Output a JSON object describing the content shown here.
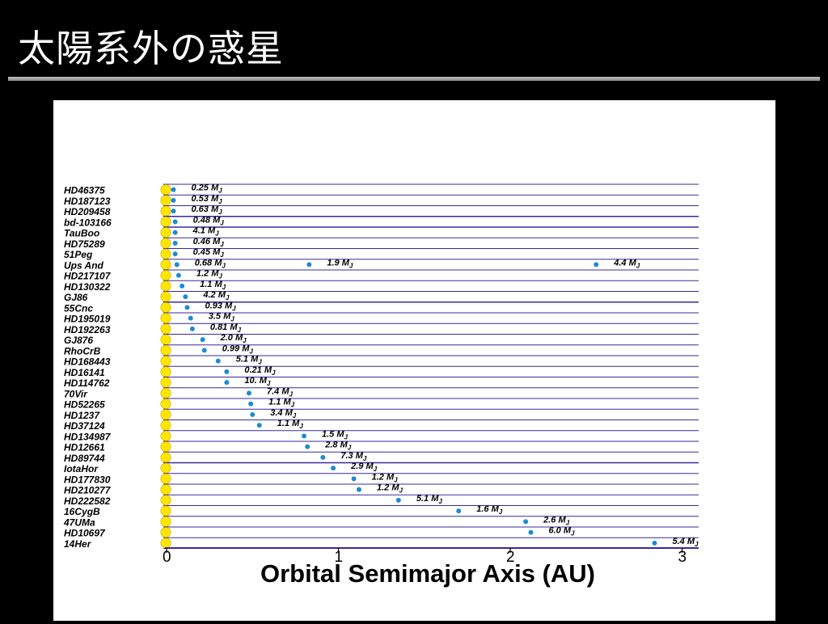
{
  "slide": {
    "title": "太陽系外の惑星"
  },
  "colors": {
    "background": "#000000",
    "panel": "#ffffff",
    "row_line": "#3a2a9a",
    "star": "#ffe600",
    "planet": "#1e8ad6"
  },
  "chart_data": {
    "type": "scatter",
    "title": "",
    "xlabel": "Orbital Semimajor Axis  (AU)",
    "ylabel": "",
    "xlim": [
      0,
      3.05
    ],
    "x_ticks": [
      0,
      1,
      2,
      3
    ],
    "grid": "horizontal rows per star",
    "mass_unit": "M",
    "stars": [
      {
        "name": "HD46375",
        "planets": [
          {
            "a": 0.04,
            "mass": "0.25"
          }
        ]
      },
      {
        "name": "HD187123",
        "planets": [
          {
            "a": 0.04,
            "mass": "0.53"
          }
        ]
      },
      {
        "name": "HD209458",
        "planets": [
          {
            "a": 0.04,
            "mass": "0.63"
          }
        ]
      },
      {
        "name": "bd-103166",
        "planets": [
          {
            "a": 0.05,
            "mass": "0.48"
          }
        ]
      },
      {
        "name": "TauBoo",
        "planets": [
          {
            "a": 0.05,
            "mass": "4.1"
          }
        ]
      },
      {
        "name": "HD75289",
        "planets": [
          {
            "a": 0.05,
            "mass": "0.46"
          }
        ]
      },
      {
        "name": "51Peg",
        "planets": [
          {
            "a": 0.05,
            "mass": "0.45"
          }
        ]
      },
      {
        "name": "Ups And",
        "planets": [
          {
            "a": 0.06,
            "mass": "0.68"
          },
          {
            "a": 0.83,
            "mass": "1.9"
          },
          {
            "a": 2.5,
            "mass": "4.4"
          }
        ]
      },
      {
        "name": "HD217107",
        "planets": [
          {
            "a": 0.07,
            "mass": "1.2"
          }
        ]
      },
      {
        "name": "HD130322",
        "planets": [
          {
            "a": 0.09,
            "mass": "1.1"
          }
        ]
      },
      {
        "name": "GJ86",
        "planets": [
          {
            "a": 0.11,
            "mass": "4.2"
          }
        ]
      },
      {
        "name": "55Cnc",
        "planets": [
          {
            "a": 0.12,
            "mass": "0.93"
          }
        ]
      },
      {
        "name": "HD195019",
        "planets": [
          {
            "a": 0.14,
            "mass": "3.5"
          }
        ]
      },
      {
        "name": "HD192263",
        "planets": [
          {
            "a": 0.15,
            "mass": "0.81"
          }
        ]
      },
      {
        "name": "GJ876",
        "planets": [
          {
            "a": 0.21,
            "mass": "2.0"
          }
        ]
      },
      {
        "name": "RhoCrB",
        "planets": [
          {
            "a": 0.22,
            "mass": "0.99"
          }
        ]
      },
      {
        "name": "HD168443",
        "planets": [
          {
            "a": 0.3,
            "mass": "5.1"
          }
        ]
      },
      {
        "name": "HD16141",
        "planets": [
          {
            "a": 0.35,
            "mass": "0.21"
          }
        ]
      },
      {
        "name": "HD114762",
        "planets": [
          {
            "a": 0.35,
            "mass": "10."
          }
        ]
      },
      {
        "name": "70Vir",
        "planets": [
          {
            "a": 0.48,
            "mass": "7.4"
          }
        ]
      },
      {
        "name": "HD52265",
        "planets": [
          {
            "a": 0.49,
            "mass": "1.1"
          }
        ]
      },
      {
        "name": "HD1237",
        "planets": [
          {
            "a": 0.5,
            "mass": "3.4"
          }
        ]
      },
      {
        "name": "HD37124",
        "planets": [
          {
            "a": 0.54,
            "mass": "1.1"
          }
        ]
      },
      {
        "name": "HD134987",
        "planets": [
          {
            "a": 0.8,
            "mass": "1.5"
          }
        ]
      },
      {
        "name": "HD12661",
        "planets": [
          {
            "a": 0.82,
            "mass": "2.8"
          }
        ]
      },
      {
        "name": "HD89744",
        "planets": [
          {
            "a": 0.91,
            "mass": "7.3"
          }
        ]
      },
      {
        "name": "IotaHor",
        "planets": [
          {
            "a": 0.97,
            "mass": "2.9"
          }
        ]
      },
      {
        "name": "HD177830",
        "planets": [
          {
            "a": 1.09,
            "mass": "1.2"
          }
        ]
      },
      {
        "name": "HD210277",
        "planets": [
          {
            "a": 1.12,
            "mass": "1.2"
          }
        ]
      },
      {
        "name": "HD222582",
        "planets": [
          {
            "a": 1.35,
            "mass": "5.1"
          }
        ]
      },
      {
        "name": "16CygB",
        "planets": [
          {
            "a": 1.7,
            "mass": "1.6"
          }
        ]
      },
      {
        "name": "47UMa",
        "planets": [
          {
            "a": 2.09,
            "mass": "2.6"
          }
        ]
      },
      {
        "name": "HD10697",
        "planets": [
          {
            "a": 2.12,
            "mass": "6.0"
          }
        ]
      },
      {
        "name": "14Her",
        "planets": [
          {
            "a": 2.84,
            "mass": "5.4"
          }
        ]
      }
    ]
  }
}
